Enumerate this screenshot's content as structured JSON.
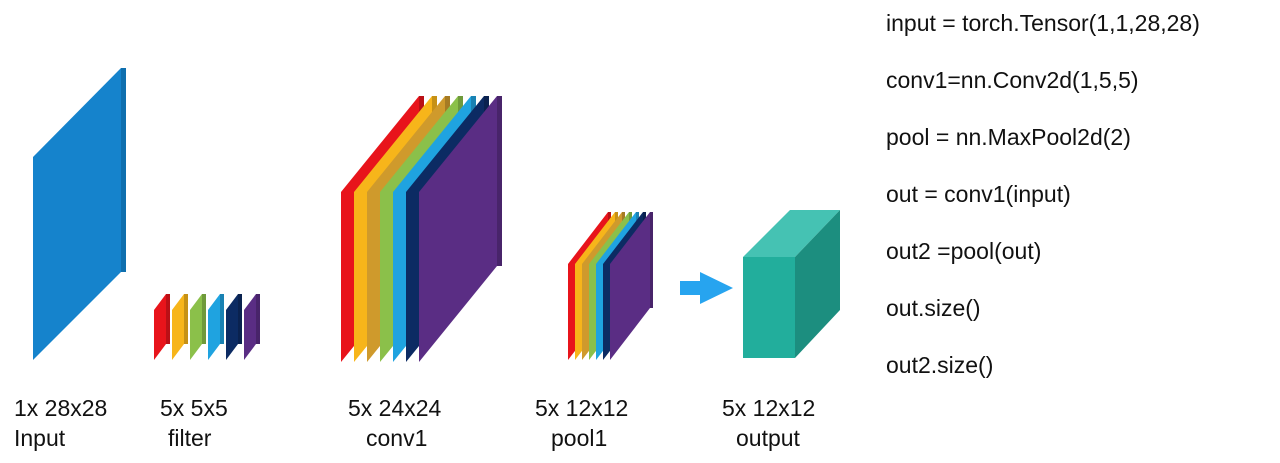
{
  "colors": {
    "input": "#1583cc",
    "layers": [
      "#e8141b",
      "#f7b51a",
      "#cf9a2c",
      "#8bc04a",
      "#1fa3e0",
      "#0c2b63",
      "#5a2d84"
    ],
    "filter_layers": [
      "#e8141b",
      "#f7b51a",
      "#8bc04a",
      "#1fa3e0",
      "#0c2b63",
      "#5a2d84"
    ],
    "arrow": "#27a4ef",
    "output_front": "#22ae9c",
    "output_top": "#45c2b3",
    "output_side": "#1c8e7f"
  },
  "blocks": [
    {
      "dims": "1x 28x28",
      "name": "Input"
    },
    {
      "dims": "5x 5x5",
      "name": "filter"
    },
    {
      "dims": "5x 24x24",
      "name": "conv1"
    },
    {
      "dims": "5x 12x12",
      "name": "pool1"
    },
    {
      "dims": "5x 12x12",
      "name": "output"
    }
  ],
  "code_lines": [
    "input = torch.Tensor(1,1,28,28)",
    "conv1=nn.Conv2d(1,5,5)",
    "pool = nn.MaxPool2d(2)",
    "out = conv1(input)",
    "out2 =pool(out)",
    "out.size()",
    "out2.size()"
  ]
}
